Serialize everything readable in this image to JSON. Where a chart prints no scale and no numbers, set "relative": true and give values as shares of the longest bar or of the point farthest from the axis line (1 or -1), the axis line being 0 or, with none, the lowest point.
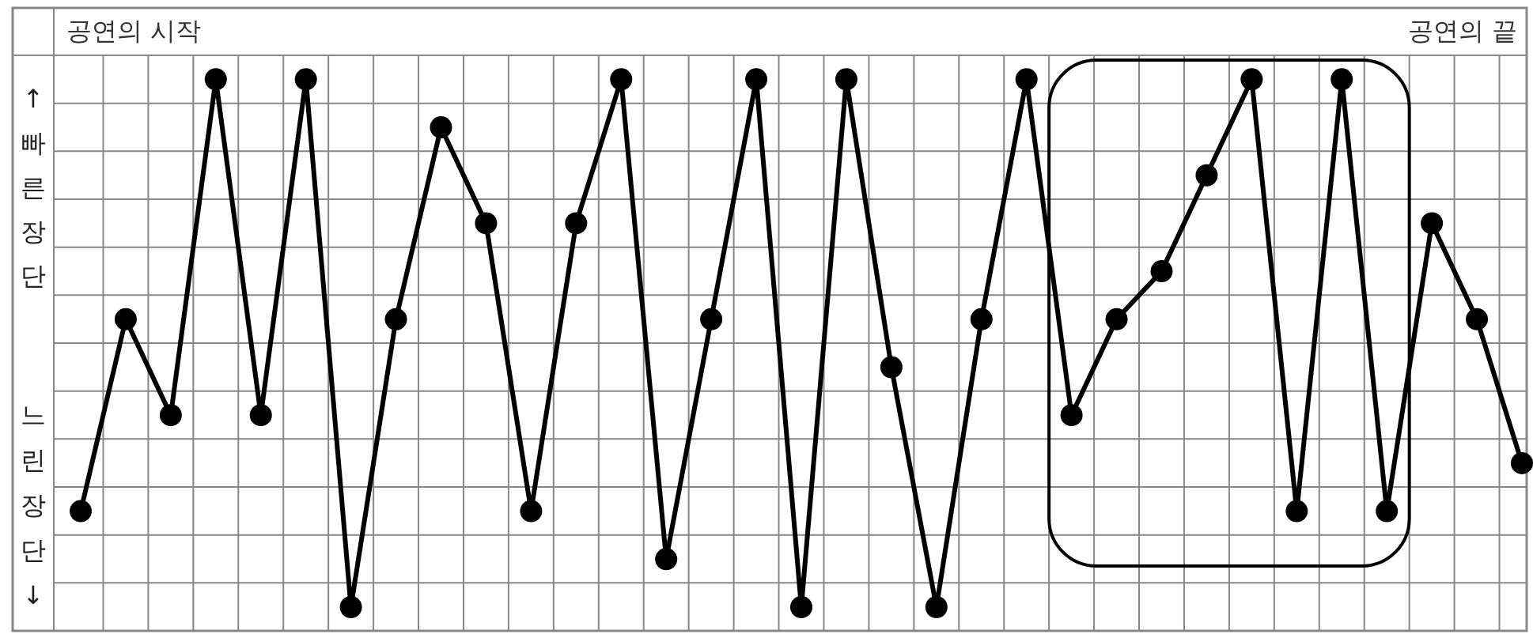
{
  "chart_data": {
    "type": "line",
    "relative": true,
    "categories": [
      null,
      null,
      null,
      null,
      null,
      null,
      null,
      null,
      null,
      null,
      null,
      null,
      null,
      null,
      null,
      null,
      null,
      null,
      null,
      null,
      null,
      null,
      null,
      null,
      null,
      null,
      null,
      null,
      null,
      null,
      null,
      null,
      null
    ],
    "series": [
      {
        "color": "#000000",
        "values": [
          0.217,
          0.565,
          0.391,
          1,
          0.391,
          1,
          0.043,
          0.565,
          0.913,
          0.739,
          0.217,
          0.739,
          1,
          0.13,
          0.565,
          1,
          0.043,
          1,
          0.478,
          0.043,
          0.565,
          1,
          0.391,
          0.565,
          0.652,
          0.826,
          1,
          0.217,
          1,
          0.217,
          0.739,
          0.565,
          0.304
        ]
      }
    ],
    "annotations": [
      "공연의 시작",
      "공연의 끝",
      "↑빠른장단",
      "느린장단↓"
    ],
    "grid": true,
    "marker": "circle",
    "line_style": "solid"
  }
}
